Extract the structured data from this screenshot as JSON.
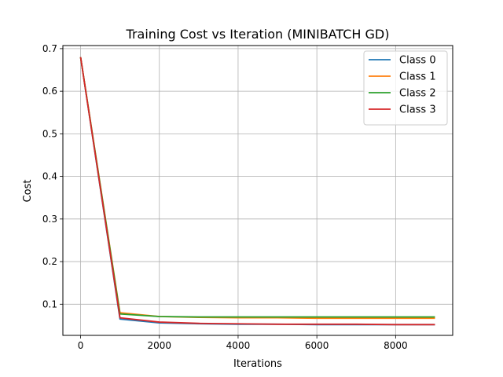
{
  "chart_data": {
    "type": "line",
    "title": "Training Cost vs Iteration (MINIBATCH GD)",
    "xlabel": "Iterations",
    "ylabel": "Cost",
    "xlim": [
      -450,
      9450
    ],
    "ylim": [
      0.0268,
      0.7072
    ],
    "xticks": [
      0,
      2000,
      4000,
      6000,
      8000
    ],
    "yticks": [
      0.1,
      0.2,
      0.3,
      0.4,
      0.5,
      0.6,
      0.7
    ],
    "grid": true,
    "legend_position": "top-right",
    "x": [
      0,
      1000,
      2000,
      3000,
      4000,
      5000,
      6000,
      7000,
      8000,
      9000
    ],
    "series": [
      {
        "name": "Class 0",
        "color": "#1f77b4",
        "values": [
          0.68,
          0.065,
          0.056,
          0.054,
          0.053,
          0.053,
          0.052,
          0.052,
          0.052,
          0.052
        ]
      },
      {
        "name": "Class 1",
        "color": "#ff7f0e",
        "values": [
          0.68,
          0.08,
          0.071,
          0.069,
          0.068,
          0.068,
          0.067,
          0.067,
          0.067,
          0.067
        ]
      },
      {
        "name": "Class 2",
        "color": "#2ca02c",
        "values": [
          0.68,
          0.077,
          0.071,
          0.07,
          0.07,
          0.07,
          0.07,
          0.07,
          0.07,
          0.07
        ]
      },
      {
        "name": "Class 3",
        "color": "#d62728",
        "values": [
          0.68,
          0.068,
          0.058,
          0.055,
          0.054,
          0.053,
          0.053,
          0.053,
          0.052,
          0.052
        ]
      }
    ]
  }
}
